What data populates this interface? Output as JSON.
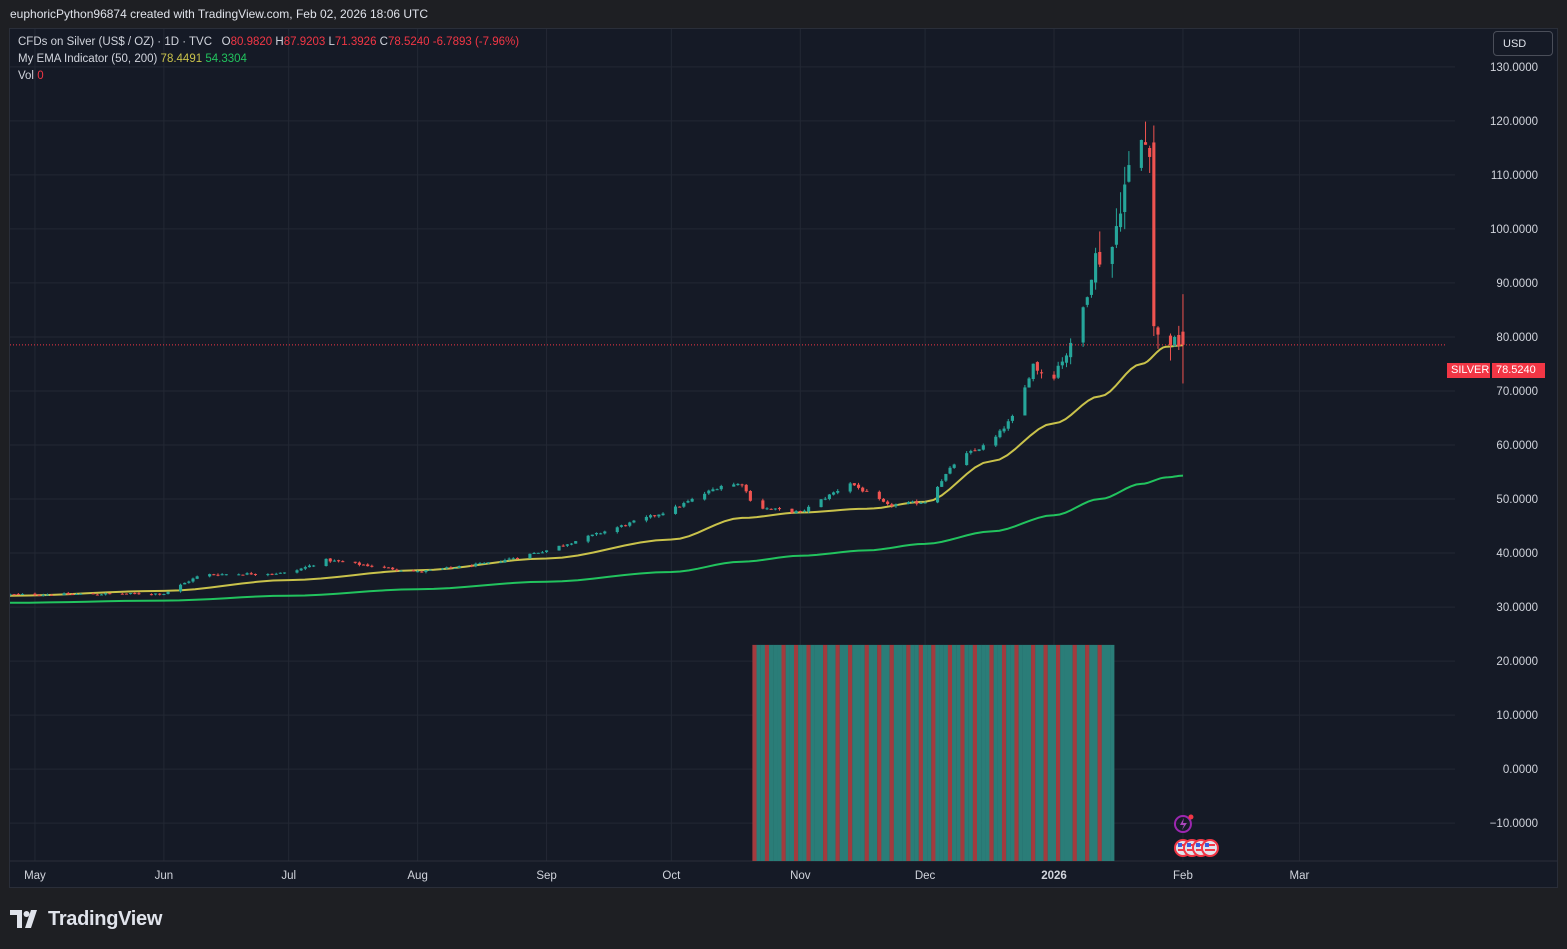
{
  "header": {
    "attribution": "euphoricPython96874 created with TradingView.com, Feb 02, 2026 18:06 UTC"
  },
  "legend": {
    "symbol": "CFDs on Silver (US$ / OZ) · 1D · TVC",
    "o_label": "O",
    "o_value": "80.9820",
    "h_label": "H",
    "h_value": "87.9203",
    "l_label": "L",
    "l_value": "71.3926",
    "c_label": "C",
    "c_value": "78.5240",
    "change": "-6.7893 (-7.96%)",
    "indicator_name": "My EMA Indicator (50, 200)",
    "ema_fast_value": "78.4491",
    "ema_slow_value": "54.3304",
    "vol_label": "Vol",
    "vol_value": "0"
  },
  "currency_button": "USD",
  "price_tag": {
    "symbol": "SILVER",
    "price": "78.5240"
  },
  "footer": {
    "brand": "TradingView"
  },
  "colors": {
    "up": "#26a69a",
    "down": "#ef5350",
    "ema_fast": "#c9c24b",
    "ema_slow": "#22c35e",
    "vol_up": "#2a7d78",
    "vol_down": "#a23b3e",
    "background": "#151a26",
    "grid": "#232834",
    "accent_red": "#f23645"
  },
  "chart_data": {
    "type": "candlestick",
    "y_ticks": [
      "130.0000",
      "120.0000",
      "110.0000",
      "100.0000",
      "90.0000",
      "80.0000",
      "70.0000",
      "60.0000",
      "50.0000",
      "40.0000",
      "30.0000",
      "20.0000",
      "10.0000",
      "0.0000",
      "−10.0000"
    ],
    "y_range": [
      -17,
      137
    ],
    "x_labels": [
      "May",
      "Jun",
      "Jul",
      "Aug",
      "Sep",
      "Oct",
      "Nov",
      "Dec",
      "2026",
      "Feb",
      "Mar"
    ],
    "x_label_days": [
      0,
      31,
      61,
      92,
      123,
      153,
      184,
      214,
      245,
      276,
      304
    ],
    "x_range": [
      -6,
      339
    ],
    "last_price": 78.524,
    "series": [
      {
        "name": "EMA 50",
        "type": "line",
        "color": "#c9c24b",
        "points": [
          [
            -6,
            32.1
          ],
          [
            31,
            33.0
          ],
          [
            61,
            35.0
          ],
          [
            92,
            36.8
          ],
          [
            123,
            39.0
          ],
          [
            153,
            42.5
          ],
          [
            170,
            46.5
          ],
          [
            184,
            47.5
          ],
          [
            200,
            48.2
          ],
          [
            214,
            49.5
          ],
          [
            230,
            57
          ],
          [
            245,
            64
          ],
          [
            256,
            69
          ],
          [
            266,
            75
          ],
          [
            272,
            78.2
          ],
          [
            276,
            78.45
          ]
        ]
      },
      {
        "name": "EMA 200",
        "type": "line",
        "color": "#22c35e",
        "points": [
          [
            -6,
            30.8
          ],
          [
            31,
            31.2
          ],
          [
            61,
            32.1
          ],
          [
            92,
            33.3
          ],
          [
            123,
            34.7
          ],
          [
            153,
            36.5
          ],
          [
            170,
            38.4
          ],
          [
            184,
            39.5
          ],
          [
            200,
            40.5
          ],
          [
            214,
            41.7
          ],
          [
            230,
            44.0
          ],
          [
            245,
            47.0
          ],
          [
            256,
            50.0
          ],
          [
            266,
            52.8
          ],
          [
            272,
            54.0
          ],
          [
            276,
            54.33
          ]
        ]
      },
      {
        "name": "Silver daily",
        "type": "candlestick",
        "control_points": [
          [
            -6,
            32.3
          ],
          [
            31,
            32.5
          ],
          [
            40,
            36.0
          ],
          [
            61,
            36.3
          ],
          [
            70,
            38.7
          ],
          [
            92,
            36.5
          ],
          [
            110,
            38.2
          ],
          [
            123,
            40.5
          ],
          [
            153,
            48.0
          ],
          [
            165,
            52.5
          ],
          [
            170,
            52.8
          ],
          [
            173,
            48.5
          ],
          [
            184,
            47.5
          ],
          [
            196,
            53.0
          ],
          [
            205,
            48.8
          ],
          [
            214,
            49.5
          ],
          [
            222,
            57.5
          ],
          [
            230,
            60.5
          ],
          [
            236,
            66.0
          ],
          [
            240,
            75.0
          ],
          [
            244,
            72.0
          ],
          [
            247,
            76.0
          ],
          [
            250,
            79.0
          ],
          [
            255,
            95.0
          ],
          [
            258,
            93.0
          ],
          [
            262,
            108.0
          ],
          [
            265,
            117.0
          ],
          [
            268,
            115.0
          ],
          [
            269,
            82.0
          ],
          [
            270,
            80.0
          ],
          [
            276,
            78.52
          ]
        ]
      },
      {
        "name": "Volume",
        "type": "bar",
        "range": [
          17,
          23
        ],
        "value": 23
      }
    ]
  }
}
